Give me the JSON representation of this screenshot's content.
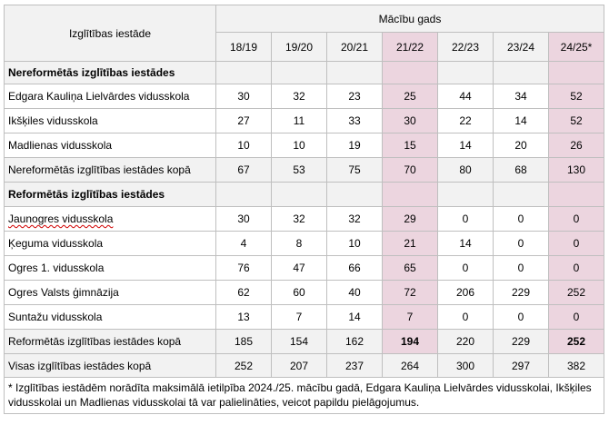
{
  "table": {
    "col_institution_header": "Izglītības iestāde",
    "col_group_header": "Mācību gads",
    "years": [
      "18/19",
      "19/20",
      "20/21",
      "21/22",
      "22/23",
      "23/24",
      "24/25*"
    ],
    "section_nonreformed_title": "Nereformētās izglītības iestādes",
    "rows_nonreformed": [
      {
        "name": "Edgara Kauliņa Lielvārdes vidusskola",
        "values": [
          "30",
          "32",
          "23",
          "25",
          "44",
          "34",
          "52"
        ]
      },
      {
        "name": "Ikšķiles vidusskola",
        "values": [
          "27",
          "11",
          "33",
          "30",
          "22",
          "14",
          "52"
        ]
      },
      {
        "name": "Madlienas vidusskola",
        "values": [
          "10",
          "10",
          "19",
          "15",
          "14",
          "20",
          "26"
        ]
      },
      {
        "name": "Nereformētās izglītības iestādes kopā",
        "values": [
          "67",
          "53",
          "75",
          "70",
          "80",
          "68",
          "130"
        ]
      }
    ],
    "section_reformed_title": "Reformētās izglītības iestādes",
    "rows_reformed": [
      {
        "name": "Jaunogres vidusskola",
        "values": [
          "30",
          "32",
          "32",
          "29",
          "0",
          "0",
          "0"
        ]
      },
      {
        "name": "Ķeguma vidusskola",
        "values": [
          "4",
          "8",
          "10",
          "21",
          "14",
          "0",
          "0"
        ]
      },
      {
        "name": "Ogres 1. vidusskola",
        "values": [
          "76",
          "47",
          "66",
          "65",
          "0",
          "0",
          "0"
        ]
      },
      {
        "name": "Ogres Valsts ģimnāzija",
        "values": [
          "62",
          "60",
          "40",
          "72",
          "206",
          "229",
          "252"
        ]
      },
      {
        "name": "Suntažu vidusskola",
        "values": [
          "13",
          "7",
          "14",
          "7",
          "0",
          "0",
          "0"
        ]
      },
      {
        "name": "Reformētās izglītības iestādes kopā",
        "values": [
          "185",
          "154",
          "162",
          "194",
          "220",
          "229",
          "252"
        ]
      },
      {
        "name": "Visas izglītības iestādes kopā",
        "values": [
          "252",
          "207",
          "237",
          "264",
          "300",
          "297",
          "382"
        ]
      }
    ],
    "footnote": "* Izglītības iestādēm norādīta maksimālā ietilpība 2024./25. mācību gadā, Edgara Kauliņa Lielvārdes vidusskolai, Ikšķiles vidusskolai un Madlienas vidusskolai tā var palielināties, veicot papildu pielāgojumus.",
    "colors": {
      "highlight": "#ecd5df",
      "header_bg": "#f2f2f2",
      "border": "#bfbfbf"
    }
  }
}
